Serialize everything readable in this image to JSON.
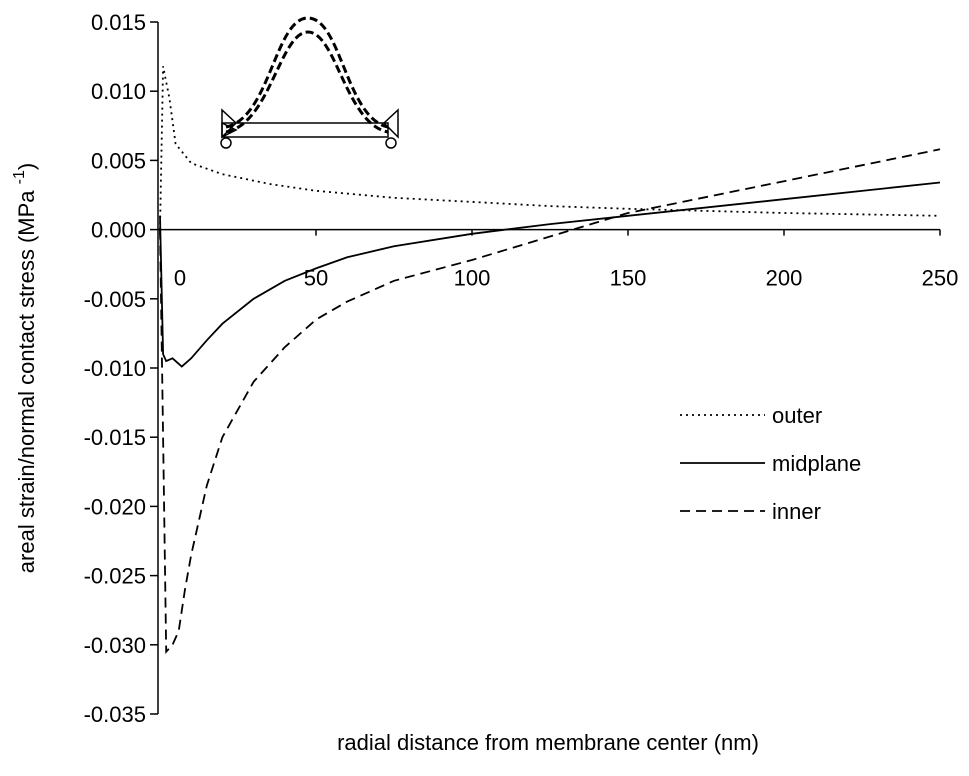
{
  "chart_data": {
    "type": "line",
    "xlabel": "radial distance from membrane center (nm)",
    "ylabel": [
      "areal strain/normal contact stress (MPa ",
      "-1",
      ")"
    ],
    "xlim": [
      0,
      250
    ],
    "ylim": [
      -0.035,
      0.015
    ],
    "xticks": [
      0,
      50,
      100,
      150,
      200,
      250
    ],
    "yticks": [
      {
        "value": -0.035,
        "label": "-0.035"
      },
      {
        "value": -0.03,
        "label": "-0.030"
      },
      {
        "value": -0.025,
        "label": "-0.025"
      },
      {
        "value": -0.02,
        "label": "-0.020"
      },
      {
        "value": -0.015,
        "label": "-0.015"
      },
      {
        "value": -0.01,
        "label": "-0.010"
      },
      {
        "value": -0.005,
        "label": "-0.005"
      },
      {
        "value": 0,
        "label": "0.000"
      },
      {
        "value": 0.005,
        "label": "0.005"
      },
      {
        "value": 0.01,
        "label": "0.010"
      },
      {
        "value": 0.015,
        "label": "0.015"
      }
    ],
    "legend": "right",
    "series": [
      {
        "name": "outer",
        "color": "#000000",
        "dash": "2,4",
        "x": [
          0,
          1,
          3,
          5,
          10,
          20,
          35,
          50,
          75,
          100,
          125,
          150,
          200,
          250
        ],
        "values": [
          0,
          0.0118,
          0.0095,
          0.0062,
          0.0048,
          0.004,
          0.0033,
          0.0028,
          0.0023,
          0.002,
          0.0017,
          0.0015,
          0.0012,
          0.001
        ]
      },
      {
        "name": "midplane",
        "color": "#000000",
        "dash": "none",
        "x": [
          0,
          1,
          2,
          4,
          7,
          10,
          15,
          20,
          30,
          40,
          50,
          60,
          75,
          100,
          125,
          150,
          200,
          250
        ],
        "values": [
          0.001,
          -0.009,
          -0.0095,
          -0.0093,
          -0.0099,
          -0.0093,
          -0.008,
          -0.0068,
          -0.005,
          -0.0037,
          -0.0028,
          -0.002,
          -0.0012,
          -0.0003,
          0.0004,
          0.001,
          0.0022,
          0.0034
        ]
      },
      {
        "name": "inner",
        "color": "#000000",
        "dash": "10,6",
        "x": [
          0,
          1,
          2,
          4,
          6,
          8,
          10,
          15,
          20,
          30,
          40,
          50,
          60,
          75,
          100,
          125,
          150,
          200,
          250
        ],
        "values": [
          0,
          -0.015,
          -0.0305,
          -0.03,
          -0.029,
          -0.026,
          -0.0235,
          -0.0185,
          -0.015,
          -0.011,
          -0.0085,
          -0.0065,
          -0.0052,
          -0.0037,
          -0.0022,
          -0.0005,
          0.0012,
          0.0035,
          0.0058
        ]
      }
    ]
  }
}
